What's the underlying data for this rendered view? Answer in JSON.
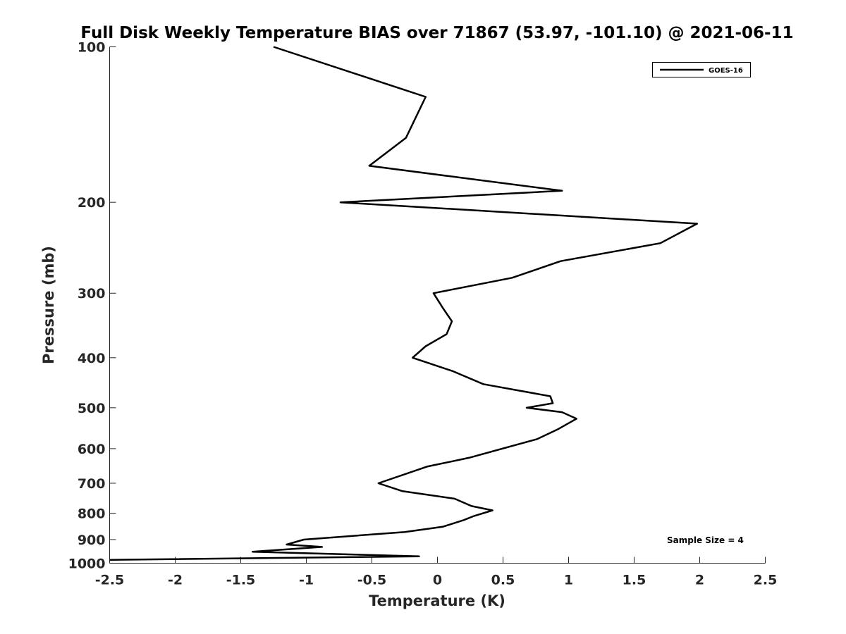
{
  "chart_data": {
    "type": "line",
    "title": "Full Disk Weekly Temperature BIAS over 71867 (53.97, -101.10) @ 2021-06-11",
    "xlabel": "Temperature (K)",
    "ylabel": "Pressure (mb)",
    "xlim": [
      -2.5,
      2.5
    ],
    "ylim": [
      1000,
      100
    ],
    "y_scale": "log",
    "y_reversed": true,
    "grid": false,
    "x_ticks": [
      -2.5,
      -2,
      -1.5,
      -1,
      -0.5,
      0,
      0.5,
      1,
      1.5,
      2,
      2.5
    ],
    "x_tick_labels": [
      "-2.5",
      "-2",
      "-1.5",
      "-1",
      "-0.5",
      "0",
      "0.5",
      "1",
      "1.5",
      "2",
      "2.5"
    ],
    "y_ticks": [
      100,
      200,
      300,
      400,
      500,
      600,
      700,
      800,
      900,
      1000
    ],
    "y_tick_labels": [
      "100",
      "200",
      "300",
      "400",
      "500",
      "600",
      "700",
      "800",
      "900",
      "1000"
    ],
    "legend": {
      "position": "top-right",
      "entries": [
        "GOES-16"
      ]
    },
    "annotation": "Sample Size = 4",
    "series": [
      {
        "name": "GOES-16",
        "color": "#000000",
        "points": [
          {
            "x": -1.25,
            "y": 100
          },
          {
            "x": -0.09,
            "y": 125
          },
          {
            "x": -0.24,
            "y": 150
          },
          {
            "x": -0.52,
            "y": 170
          },
          {
            "x": 0.95,
            "y": 190
          },
          {
            "x": -0.74,
            "y": 200
          },
          {
            "x": 1.98,
            "y": 220
          },
          {
            "x": 1.7,
            "y": 240
          },
          {
            "x": 0.94,
            "y": 260
          },
          {
            "x": 0.57,
            "y": 280
          },
          {
            "x": -0.03,
            "y": 300
          },
          {
            "x": 0.04,
            "y": 320
          },
          {
            "x": 0.11,
            "y": 340
          },
          {
            "x": 0.07,
            "y": 360
          },
          {
            "x": -0.09,
            "y": 380
          },
          {
            "x": -0.19,
            "y": 400
          },
          {
            "x": 0.12,
            "y": 425
          },
          {
            "x": 0.35,
            "y": 450
          },
          {
            "x": 0.86,
            "y": 475
          },
          {
            "x": 0.88,
            "y": 490
          },
          {
            "x": 0.68,
            "y": 500
          },
          {
            "x": 0.95,
            "y": 510
          },
          {
            "x": 1.06,
            "y": 525
          },
          {
            "x": 0.92,
            "y": 550
          },
          {
            "x": 0.76,
            "y": 575
          },
          {
            "x": 0.24,
            "y": 625
          },
          {
            "x": -0.08,
            "y": 650
          },
          {
            "x": -0.45,
            "y": 700
          },
          {
            "x": -0.27,
            "y": 725
          },
          {
            "x": 0.13,
            "y": 750
          },
          {
            "x": 0.26,
            "y": 775
          },
          {
            "x": 0.42,
            "y": 790
          },
          {
            "x": 0.28,
            "y": 810
          },
          {
            "x": 0.2,
            "y": 825
          },
          {
            "x": 0.04,
            "y": 850
          },
          {
            "x": -0.25,
            "y": 870
          },
          {
            "x": -1.02,
            "y": 900
          },
          {
            "x": -1.15,
            "y": 920
          },
          {
            "x": -0.88,
            "y": 930
          },
          {
            "x": -1.41,
            "y": 950
          },
          {
            "x": -0.14,
            "y": 970
          },
          {
            "x": -2.5,
            "y": 985
          }
        ]
      }
    ]
  }
}
